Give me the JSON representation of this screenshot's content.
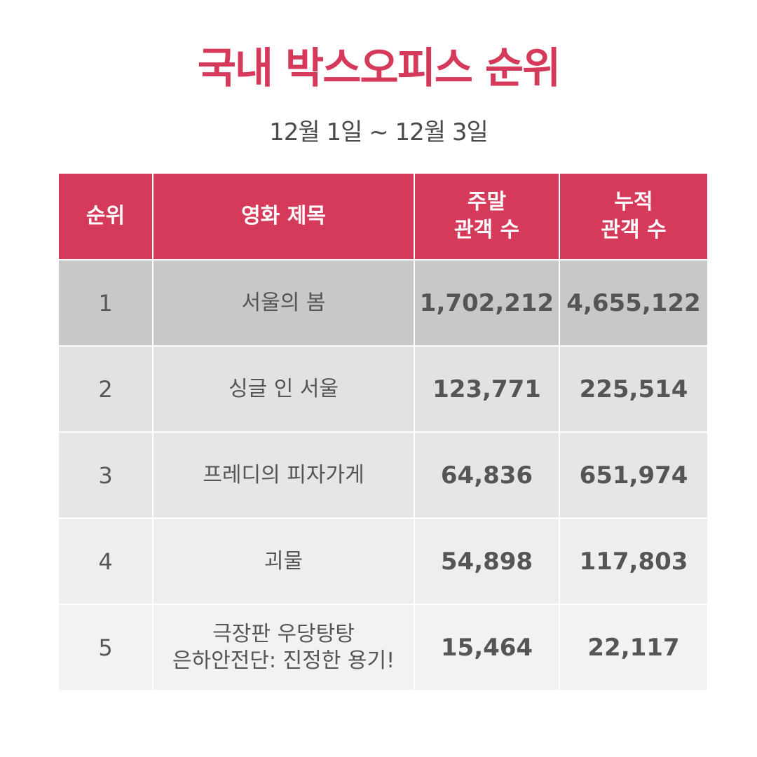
{
  "header": {
    "title": "국내 박스오피스 순위",
    "subtitle": "12월 1일 ~ 12월 3일"
  },
  "table": {
    "columns": [
      {
        "lines": [
          "순위"
        ]
      },
      {
        "lines": [
          "영화 제목"
        ]
      },
      {
        "lines": [
          "주말",
          "관객 수"
        ]
      },
      {
        "lines": [
          "누적",
          "관객 수"
        ]
      }
    ],
    "rows": [
      {
        "rank": "1",
        "title_lines": [
          "서울의 봄"
        ],
        "weekend": "1,702,212",
        "total": "4,655,122"
      },
      {
        "rank": "2",
        "title_lines": [
          "싱글 인 서울"
        ],
        "weekend": "123,771",
        "total": "225,514"
      },
      {
        "rank": "3",
        "title_lines": [
          "프레디의 피자가게"
        ],
        "weekend": "64,836",
        "total": "651,974"
      },
      {
        "rank": "4",
        "title_lines": [
          "괴물"
        ],
        "weekend": "54,898",
        "total": "117,803"
      },
      {
        "rank": "5",
        "title_lines": [
          "극장판 우당탕탕",
          "은하안전단: 진정한 용기!"
        ],
        "weekend": "15,464",
        "total": "22,117"
      }
    ],
    "colors": {
      "header_bg": "#d63a5a",
      "row_bgs": [
        "#c8c8c8",
        "#e2e2e2",
        "#e6e6e6",
        "#eeeeee",
        "#f2f2f2"
      ]
    }
  }
}
